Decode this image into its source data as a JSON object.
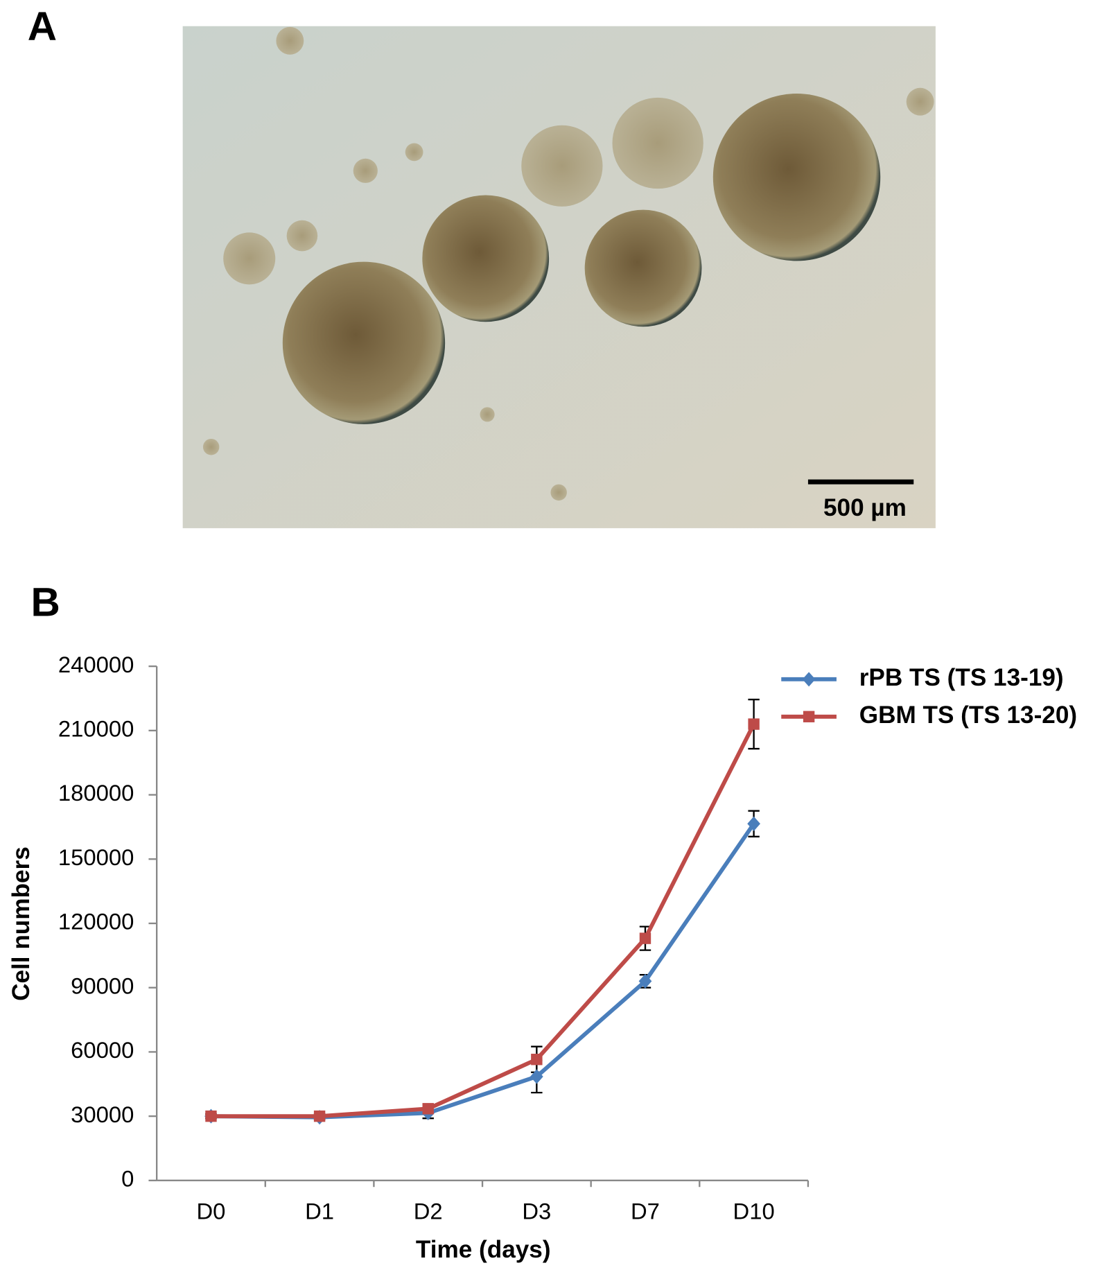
{
  "figure": {
    "panel_a_label": "A",
    "scale_bar_label": "500 µm",
    "panel_b_label": "B"
  },
  "chart_data": {
    "type": "line",
    "xlabel": "Time (days)",
    "ylabel": "Cell numbers",
    "categories": [
      "D0",
      "D1",
      "D2",
      "D3",
      "D7",
      "D10"
    ],
    "series": [
      {
        "name": "rPB TS (TS 13-19)",
        "color": "#4a7ebb",
        "marker": "diamond",
        "values": [
          30000,
          29500,
          31500,
          48500,
          93000,
          166500
        ],
        "errors": [
          1000,
          1000,
          2500,
          7500,
          3000,
          6000
        ]
      },
      {
        "name": "GBM TS (TS 13-20)",
        "color": "#be4b48",
        "marker": "square",
        "values": [
          30000,
          30000,
          33500,
          56500,
          113000,
          213000
        ],
        "errors": [
          1000,
          1000,
          2000,
          6000,
          5500,
          11500
        ]
      }
    ],
    "ylim": [
      0,
      240000
    ],
    "yticks": [
      0,
      30000,
      60000,
      90000,
      120000,
      150000,
      180000,
      210000,
      240000
    ],
    "legend": "upper right",
    "grid": false
  }
}
